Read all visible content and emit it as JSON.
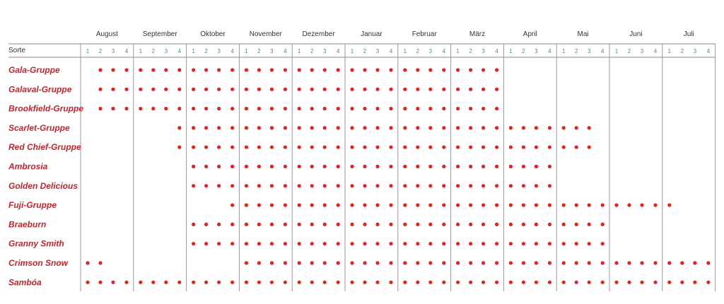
{
  "chart_data": {
    "type": "table",
    "first_column_header": "Sorte",
    "months": [
      "August",
      "September",
      "Oktober",
      "November",
      "Dezember",
      "Januar",
      "Februar",
      "März",
      "April",
      "Mai",
      "Juni",
      "Juli"
    ],
    "weeks": [
      "1",
      "2",
      "3",
      "4"
    ],
    "dot_color": "#e3231b",
    "label_color": "#c0262c",
    "week_label_color": "#4a8f7a",
    "rows": [
      {
        "variety": "Gala-Gruppe",
        "start_week": 2,
        "end_week": 32
      },
      {
        "variety": "Galaval-Gruppe",
        "start_week": 2,
        "end_week": 32
      },
      {
        "variety": "Brookfield-Gruppe",
        "start_week": 2,
        "end_week": 32
      },
      {
        "variety": "Scarlet-Gruppe",
        "start_week": 8,
        "end_week": 39
      },
      {
        "variety": "Red Chief-Gruppe",
        "start_week": 8,
        "end_week": 39
      },
      {
        "variety": "Ambrosia",
        "start_week": 9,
        "end_week": 36
      },
      {
        "variety": "Golden Delicious",
        "start_week": 9,
        "end_week": 36
      },
      {
        "variety": "Fuji-Gruppe",
        "start_week": 12,
        "end_week": 45
      },
      {
        "variety": "Braeburn",
        "start_week": 9,
        "end_week": 40
      },
      {
        "variety": "Granny Smith",
        "start_week": 9,
        "end_week": 40
      },
      {
        "variety": "Crimson Snow",
        "start_week": 13,
        "end_week": 48,
        "extra_weeks": [
          1,
          2
        ]
      },
      {
        "variety": "Sambóa",
        "start_week": 1,
        "end_week": 48
      }
    ]
  }
}
